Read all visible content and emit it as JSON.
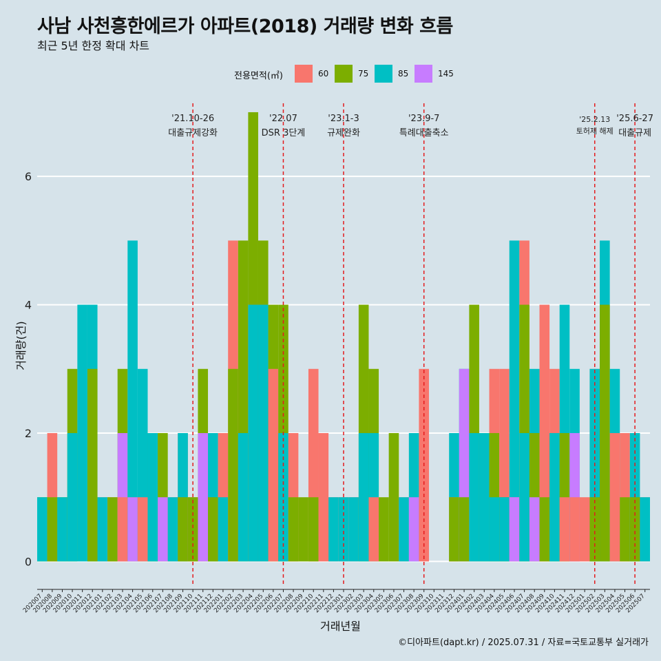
{
  "chart_data": {
    "type": "bar",
    "title": "사남 사천흥한에르가 아파트(2018) 거래량 변화 흐름",
    "subtitle": "최근 5년 한정 확대 차트",
    "xlabel": "거래년월",
    "ylabel": "거래량(건)",
    "legend_title": "전용면적(㎡)",
    "legend_placement": "top",
    "grid": true,
    "ylim": [
      -0.35,
      7.3
    ],
    "yticks": [
      0,
      2,
      4,
      6
    ],
    "caption": "©디아파트(dapt.kr) / 2025.07.31 / 자료=국토교통부 실거래가",
    "series": [
      {
        "name": "60",
        "color": "#F8766D"
      },
      {
        "name": "75",
        "color": "#7CAE00"
      },
      {
        "name": "85",
        "color": "#00BFC4"
      },
      {
        "name": "145",
        "color": "#C77CFF"
      }
    ],
    "months": [
      "202007",
      "202008",
      "202009",
      "202010",
      "202011",
      "202012",
      "202101",
      "202102",
      "202103",
      "202104",
      "202105",
      "202106",
      "202107",
      "202108",
      "202109",
      "202110",
      "202111",
      "202112",
      "202201",
      "202202",
      "202203",
      "202204",
      "202205",
      "202206",
      "202207",
      "202208",
      "202209",
      "202210",
      "202211",
      "202212",
      "202301",
      "202302",
      "202303",
      "202304",
      "202305",
      "202306",
      "202307",
      "202308",
      "202309",
      "202310",
      "202311",
      "202312",
      "202401",
      "202402",
      "202403",
      "202404",
      "202405",
      "202406",
      "202407",
      "202408",
      "202409",
      "202410",
      "202411",
      "202412",
      "202501",
      "202502",
      "202503",
      "202504",
      "202505",
      "202506",
      "202507"
    ],
    "bars": [
      {
        "month": "202007",
        "values": {
          "75": 1,
          "85": 1
        }
      },
      {
        "month": "202008",
        "values": {
          "60": 2,
          "75": 1
        }
      },
      {
        "month": "202009",
        "values": {
          "75": 1,
          "85": 1
        }
      },
      {
        "month": "202010",
        "values": {
          "75": 3,
          "85": 2
        }
      },
      {
        "month": "202011",
        "values": {
          "85": 4
        }
      },
      {
        "month": "202012",
        "values": {
          "75": 3,
          "85": 4
        }
      },
      {
        "month": "202101",
        "values": {
          "60": 1,
          "85": 1
        }
      },
      {
        "month": "202102",
        "values": {
          "60": 1,
          "75": 1
        }
      },
      {
        "month": "202103",
        "values": {
          "75": 3,
          "145": 2,
          "60": 1
        }
      },
      {
        "month": "202104",
        "values": {
          "75": 1,
          "85": 5,
          "145": 1
        }
      },
      {
        "month": "202105",
        "values": {
          "60": 1,
          "85": 3
        }
      },
      {
        "month": "202106",
        "values": {
          "60": 2,
          "75": 2,
          "85": 2
        }
      },
      {
        "month": "202107",
        "values": {
          "75": 2,
          "145": 1
        }
      },
      {
        "month": "202108",
        "values": {
          "60": 1,
          "85": 1
        }
      },
      {
        "month": "202109",
        "values": {
          "60": 2,
          "75": 1,
          "85": 2
        }
      },
      {
        "month": "202110",
        "values": {
          "60": 1,
          "75": 1
        }
      },
      {
        "month": "202111",
        "values": {
          "75": 3,
          "145": 2
        }
      },
      {
        "month": "202112",
        "values": {
          "60": 2,
          "75": 1,
          "85": 2
        }
      },
      {
        "month": "202201",
        "values": {
          "60": 2,
          "85": 1
        }
      },
      {
        "month": "202202",
        "values": {
          "60": 5,
          "75": 3
        }
      },
      {
        "month": "202203",
        "values": {
          "85": 2,
          "75": 5
        }
      },
      {
        "month": "202204",
        "values": {
          "85": 4,
          "60": 4,
          "75": 7
        }
      },
      {
        "month": "202205",
        "values": {
          "60": 4,
          "75": 5,
          "85": 4
        }
      },
      {
        "month": "202206",
        "values": {
          "60": 3,
          "75": 4
        }
      },
      {
        "month": "202207",
        "values": {
          "75": 4,
          "85": 2
        }
      },
      {
        "month": "202208",
        "values": {
          "60": 2,
          "75": 1
        }
      },
      {
        "month": "202209",
        "values": {
          "75": 1
        }
      },
      {
        "month": "202210",
        "values": {
          "60": 3,
          "75": 1
        }
      },
      {
        "month": "202211",
        "values": {
          "60": 2
        }
      },
      {
        "month": "202212",
        "values": {
          "60": 1,
          "85": 1
        }
      },
      {
        "month": "202301",
        "values": {
          "85": 1,
          "60": 1
        }
      },
      {
        "month": "202302",
        "values": {
          "60": 1,
          "85": 1
        }
      },
      {
        "month": "202303",
        "values": {
          "75": 4,
          "85": 2
        }
      },
      {
        "month": "202304",
        "values": {
          "60": 1,
          "75": 3,
          "85": 2
        }
      },
      {
        "month": "202305",
        "values": {
          "75": 1
        }
      },
      {
        "month": "202306",
        "values": {
          "75": 2
        }
      },
      {
        "month": "202307",
        "values": {
          "85": 1,
          "60": 1
        }
      },
      {
        "month": "202308",
        "values": {
          "85": 2,
          "145": 1
        }
      },
      {
        "month": "202309",
        "values": {
          "60": 3
        }
      },
      {
        "month": "202310",
        "values": {}
      },
      {
        "month": "202311",
        "values": {}
      },
      {
        "month": "202312",
        "values": {
          "60": 1,
          "75": 1,
          "85": 2
        }
      },
      {
        "month": "202401",
        "values": {
          "75": 1,
          "85": 3,
          "145": 3
        }
      },
      {
        "month": "202402",
        "values": {
          "60": 2,
          "75": 4,
          "85": 2
        }
      },
      {
        "month": "202403",
        "values": {
          "75": 2,
          "85": 2
        }
      },
      {
        "month": "202404",
        "values": {
          "60": 3,
          "75": 2,
          "85": 1
        }
      },
      {
        "month": "202405",
        "values": {
          "60": 3,
          "75": 1,
          "85": 1
        }
      },
      {
        "month": "202406",
        "values": {
          "60": 1,
          "85": 5,
          "145": 1
        }
      },
      {
        "month": "202407",
        "values": {
          "60": 5,
          "75": 4,
          "85": 2
        }
      },
      {
        "month": "202408",
        "values": {
          "75": 2,
          "85": 3,
          "145": 1
        }
      },
      {
        "month": "202409",
        "values": {
          "60": 4,
          "75": 1
        }
      },
      {
        "month": "202410",
        "values": {
          "85": 2,
          "60": 3,
          "75": 2
        }
      },
      {
        "month": "202411",
        "values": {
          "85": 4,
          "60": 1,
          "75": 2
        }
      },
      {
        "month": "202412",
        "values": {
          "85": 3,
          "145": 2,
          "60": 1
        }
      },
      {
        "month": "202501",
        "values": {
          "60": 1
        }
      },
      {
        "month": "202502",
        "values": {
          "60": 3,
          "75": 1,
          "85": 3
        }
      },
      {
        "month": "202503",
        "values": {
          "75": 4,
          "85": 5
        }
      },
      {
        "month": "202504",
        "values": {
          "60": 2,
          "85": 3
        }
      },
      {
        "month": "202505",
        "values": {
          "75": 1,
          "60": 2
        }
      },
      {
        "month": "202506",
        "values": {
          "75": 1,
          "85": 2
        }
      },
      {
        "month": "202507",
        "values": {
          "60": 1,
          "85": 1
        }
      }
    ],
    "events": [
      {
        "date": "'21.10-26",
        "label": "대출규제강화",
        "month": "202110"
      },
      {
        "date": "'22.07",
        "label": "DSR 3단계",
        "month": "202207"
      },
      {
        "date": "'23.1-3",
        "label": "규제완화",
        "month": "202301"
      },
      {
        "date": "'23.9-7",
        "label": "특례대출축소",
        "month": "202309"
      },
      {
        "date": "'25.2.13",
        "label": "토허제 해제",
        "month": "202502"
      },
      {
        "date": "'25.6-27",
        "label": "대출규제",
        "month": "202506"
      }
    ]
  }
}
